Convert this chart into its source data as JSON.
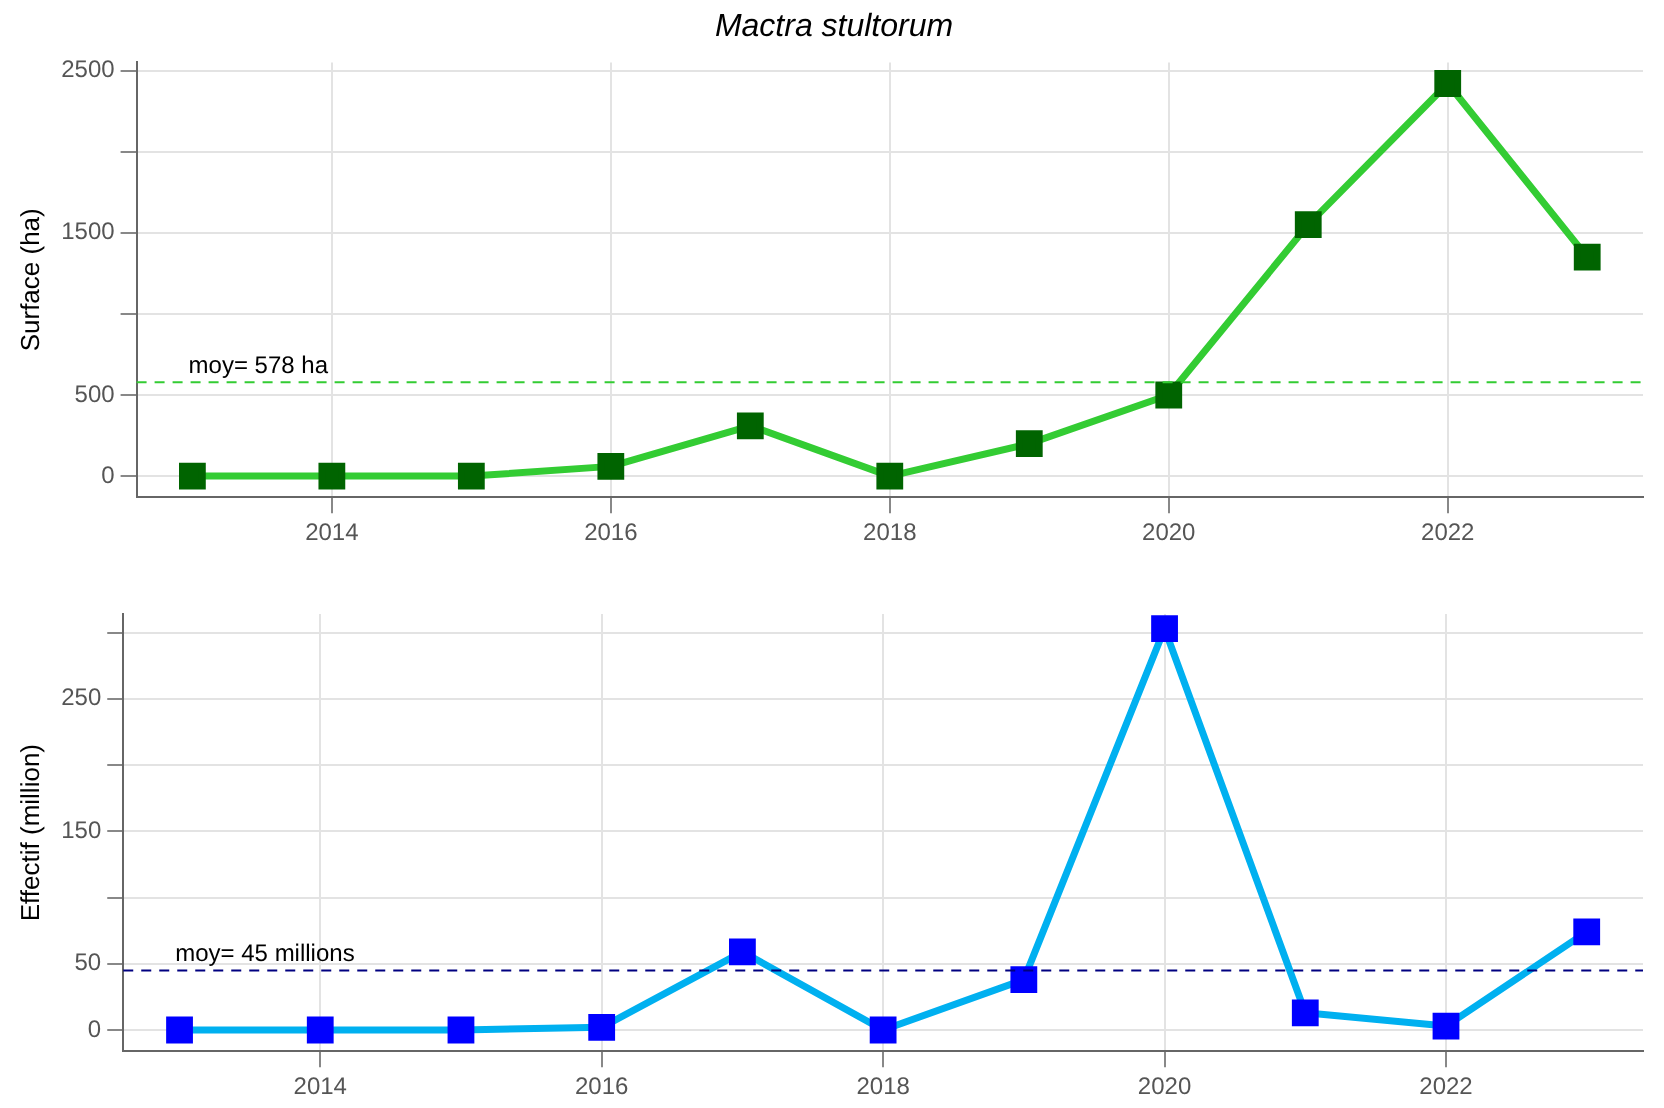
{
  "chart_data": [
    {
      "type": "line",
      "title": "Mactra stultorum",
      "ylabel": "Surface (ha)",
      "x": [
        2013,
        2014,
        2015,
        2016,
        2017,
        2018,
        2019,
        2020,
        2021,
        2022,
        2023
      ],
      "series": [
        {
          "color": "#33cc33",
          "colors": [
            "#006400",
            "#006400",
            "#006400",
            "#006400",
            "#006400",
            "#006400",
            "#006400",
            "#006400",
            "#006400",
            "#006400",
            "#006400"
          ],
          "values": [
            0,
            0,
            0,
            60,
            310,
            0,
            200,
            500,
            1550,
            2420,
            1350
          ]
        }
      ],
      "xlim": [
        2012.6,
        2023.4
      ],
      "xticks": [
        2014,
        2016,
        2018,
        2020,
        2022
      ],
      "ylim": [
        -130,
        2550
      ],
      "yticks": [
        0,
        500,
        {
          "value": 1000,
          "label": null
        },
        1500,
        {
          "value": 2000,
          "label": null
        },
        2500
      ],
      "ref_lines": [
        {
          "axis": "y",
          "value": 578,
          "label": "moy= 578 ha",
          "color": "#33cc33",
          "line_style": "dashed"
        }
      ],
      "grid": true,
      "marker": "square",
      "line_style": "solid"
    },
    {
      "type": "line",
      "ylabel": "Effectif (million)",
      "x": [
        2013,
        2014,
        2015,
        2016,
        2017,
        2018,
        2019,
        2020,
        2021,
        2022,
        2023
      ],
      "series": [
        {
          "color": "#00b0f0",
          "colors": [
            "#0000ff",
            "#0000ff",
            "#0000ff",
            "#0000ff",
            "#0000ff",
            "#0000ff",
            "#0000ff",
            "#0000ff",
            "#0000ff",
            "#0000ff",
            "#0000ff"
          ],
          "values": [
            0,
            0,
            0,
            2,
            59,
            0,
            38,
            303,
            13,
            3,
            74
          ]
        }
      ],
      "xlim": [
        2012.6,
        2023.4
      ],
      "xticks": [
        2014,
        2016,
        2018,
        2020,
        2022
      ],
      "ylim": [
        -16,
        314
      ],
      "yticks": [
        0,
        50,
        {
          "value": 100,
          "label": null
        },
        150,
        {
          "value": 200,
          "label": null
        },
        250,
        {
          "value": 300,
          "label": null
        }
      ],
      "ref_lines": [
        {
          "axis": "y",
          "value": 45,
          "label": "moy= 45 millions",
          "color": "#000080",
          "line_style": "dashed"
        }
      ],
      "grid": true,
      "marker": "square",
      "line_style": "solid"
    }
  ]
}
